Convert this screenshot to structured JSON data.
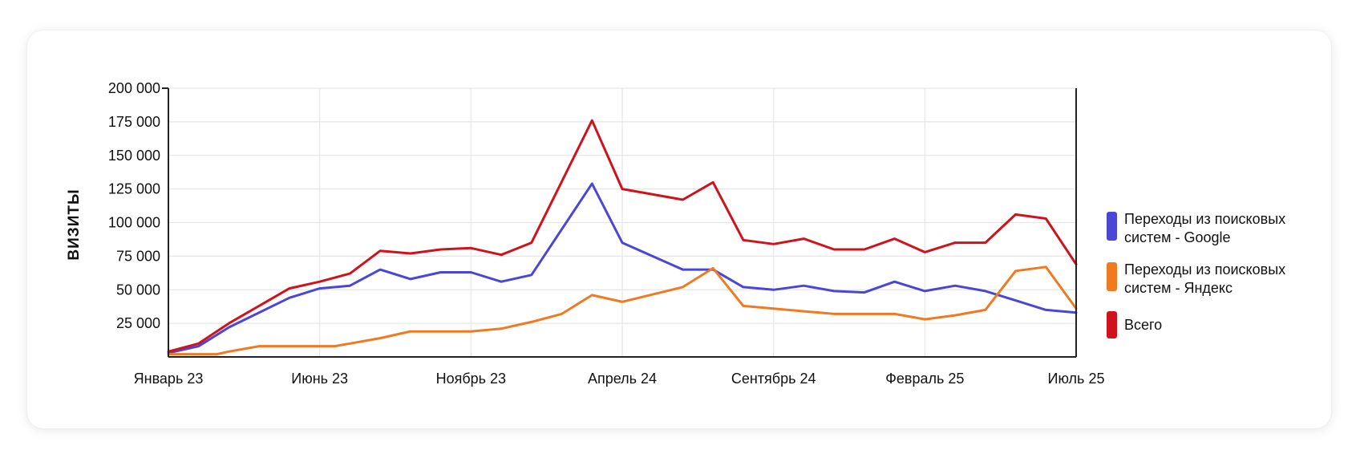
{
  "chart_data": {
    "type": "line",
    "title": "",
    "xlabel": "",
    "ylabel": "ВИЗИТЫ",
    "ylim": [
      0,
      200000
    ],
    "yticks": [
      25000,
      50000,
      75000,
      100000,
      125000,
      150000,
      175000,
      200000
    ],
    "ytick_labels": [
      "25 000",
      "50 000",
      "75 000",
      "100 000",
      "125 000",
      "150 000",
      "175 000",
      "200 000"
    ],
    "xlim": [
      0,
      30
    ],
    "xticks": [
      0,
      5,
      10,
      15,
      20,
      25,
      30
    ],
    "xtick_labels": [
      "Январь 23",
      "Июнь 23",
      "Ноябрь 23",
      "Апрель 24",
      "Сентябрь 24",
      "Февраль 25",
      "Июль 25"
    ],
    "grid": true,
    "legend_position": "right",
    "series": [
      {
        "name": "Переходы из поисковых систем - Google",
        "color": "#4B47D6",
        "points": [
          [
            0,
            3000
          ],
          [
            1,
            8000
          ],
          [
            2,
            22000
          ],
          [
            4,
            44000
          ],
          [
            5,
            51000
          ],
          [
            6,
            53000
          ],
          [
            7,
            65000
          ],
          [
            8,
            58000
          ],
          [
            9,
            63000
          ],
          [
            10,
            63000
          ],
          [
            11,
            56000
          ],
          [
            12,
            61000
          ],
          [
            14,
            129000
          ],
          [
            15,
            85000
          ],
          [
            17,
            65000
          ],
          [
            18,
            65000
          ],
          [
            19,
            52000
          ],
          [
            20,
            50000
          ],
          [
            21,
            53000
          ],
          [
            22,
            49000
          ],
          [
            23,
            48000
          ],
          [
            24,
            56000
          ],
          [
            25,
            49000
          ],
          [
            26,
            53000
          ],
          [
            27,
            49000
          ],
          [
            28,
            42000
          ],
          [
            29,
            35000
          ],
          [
            30,
            33000
          ]
        ]
      },
      {
        "name": "Переходы из поисковых систем - Яндекс",
        "color": "#F07A22",
        "points": [
          [
            0,
            2000
          ],
          [
            1,
            2000
          ],
          [
            1.6,
            2000
          ],
          [
            2,
            4000
          ],
          [
            3,
            8000
          ],
          [
            5,
            8000
          ],
          [
            5.5,
            8000
          ],
          [
            6,
            10000
          ],
          [
            7,
            14000
          ],
          [
            8,
            19000
          ],
          [
            10,
            19000
          ],
          [
            11,
            21000
          ],
          [
            12,
            26000
          ],
          [
            13,
            32000
          ],
          [
            14,
            46000
          ],
          [
            15,
            41000
          ],
          [
            17,
            52000
          ],
          [
            18,
            66000
          ],
          [
            19,
            38000
          ],
          [
            20,
            36000
          ],
          [
            21,
            34000
          ],
          [
            22,
            32000
          ],
          [
            24,
            32000
          ],
          [
            25,
            28000
          ],
          [
            26,
            31000
          ],
          [
            27,
            35000
          ],
          [
            28,
            64000
          ],
          [
            29,
            67000
          ],
          [
            30,
            36000
          ]
        ]
      },
      {
        "name": "Всего",
        "color": "#D0121C",
        "points": [
          [
            0,
            4000
          ],
          [
            1,
            10000
          ],
          [
            2,
            25000
          ],
          [
            4,
            51000
          ],
          [
            5,
            56000
          ],
          [
            6,
            62000
          ],
          [
            7,
            79000
          ],
          [
            8,
            77000
          ],
          [
            9,
            80000
          ],
          [
            10,
            81000
          ],
          [
            11,
            76000
          ],
          [
            12,
            85000
          ],
          [
            14,
            176000
          ],
          [
            15,
            125000
          ],
          [
            17,
            117000
          ],
          [
            18,
            130000
          ],
          [
            19,
            87000
          ],
          [
            20,
            84000
          ],
          [
            21,
            88000
          ],
          [
            22,
            80000
          ],
          [
            23,
            80000
          ],
          [
            24,
            88000
          ],
          [
            25,
            78000
          ],
          [
            26,
            85000
          ],
          [
            27,
            85000
          ],
          [
            28,
            106000
          ],
          [
            29,
            103000
          ],
          [
            30,
            69000
          ]
        ]
      }
    ]
  },
  "legend": {
    "items": [
      {
        "label": "Переходы из поисковых систем - Google",
        "color": "#4B47D6"
      },
      {
        "label": "Переходы из поисковых систем - Яндекс",
        "color": "#F07A22"
      },
      {
        "label": "Всего",
        "color": "#D0121C"
      }
    ]
  }
}
